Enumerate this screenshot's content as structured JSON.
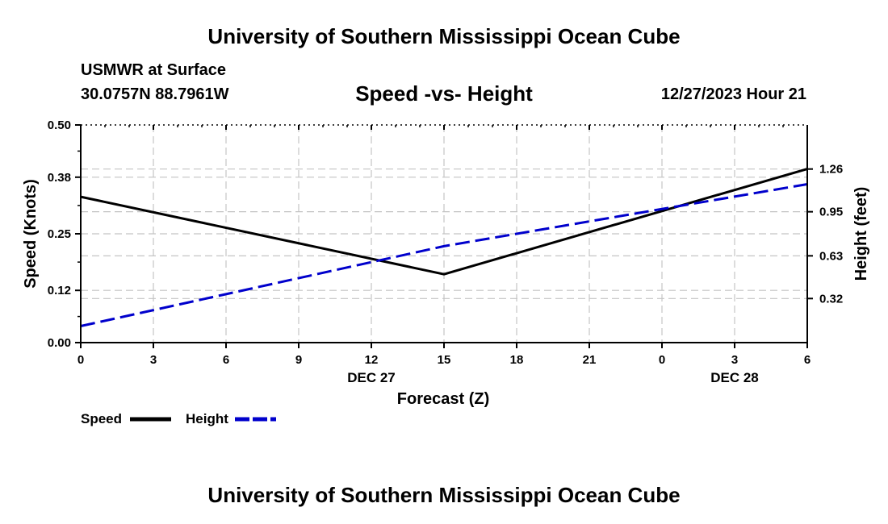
{
  "header": {
    "title": "University of Southern Mississippi Ocean Cube",
    "station": "USMWR at Surface",
    "coords": "30.0757N  88.7961W",
    "subtitle": "Speed -vs- Height",
    "datestamp": "12/27/2023 Hour 21"
  },
  "footer": {
    "title": "University of Southern Mississippi Ocean Cube"
  },
  "chart_data": {
    "type": "line",
    "title": "Speed -vs- Height",
    "xlabel": "Forecast (Z)",
    "ylabel": "Speed (Knots)",
    "y2label": "Height (feet)",
    "x_hours": [
      0,
      3,
      6,
      9,
      12,
      15,
      18,
      21,
      24,
      27,
      30
    ],
    "x_tick_labels": [
      "0",
      "3",
      "6",
      "9",
      "12",
      "15",
      "18",
      "21",
      "0",
      "3",
      "6"
    ],
    "x_date_labels": [
      {
        "hour": 12,
        "text": "DEC 27"
      },
      {
        "hour": 27,
        "text": "DEC 28"
      }
    ],
    "xlim": [
      0,
      30
    ],
    "ylim": [
      0,
      0.5
    ],
    "y_ticks": [
      0.0,
      0.12,
      0.25,
      0.38,
      0.5
    ],
    "y_tick_labels": [
      "0.00",
      "0.12",
      "0.25",
      "0.38",
      "0.50"
    ],
    "y2lim": [
      0,
      1.58
    ],
    "y2_ticks": [
      0.32,
      0.63,
      0.95,
      1.26
    ],
    "y2_tick_labels": [
      "0.32",
      "0.63",
      "0.95",
      "1.26"
    ],
    "grid": true,
    "series": [
      {
        "name": "Speed",
        "axis": "left",
        "color": "#000000",
        "style": "solid",
        "x": [
          0,
          15,
          30
        ],
        "values": [
          0.335,
          0.157,
          0.399
        ]
      },
      {
        "name": "Height",
        "axis": "right",
        "color": "#0000cc",
        "style": "dashed",
        "x": [
          0,
          15,
          30
        ],
        "values": [
          0.12,
          0.7,
          1.15
        ]
      }
    ],
    "legend": {
      "placement": "bottom-left",
      "items": [
        "Speed",
        "Height"
      ]
    }
  }
}
